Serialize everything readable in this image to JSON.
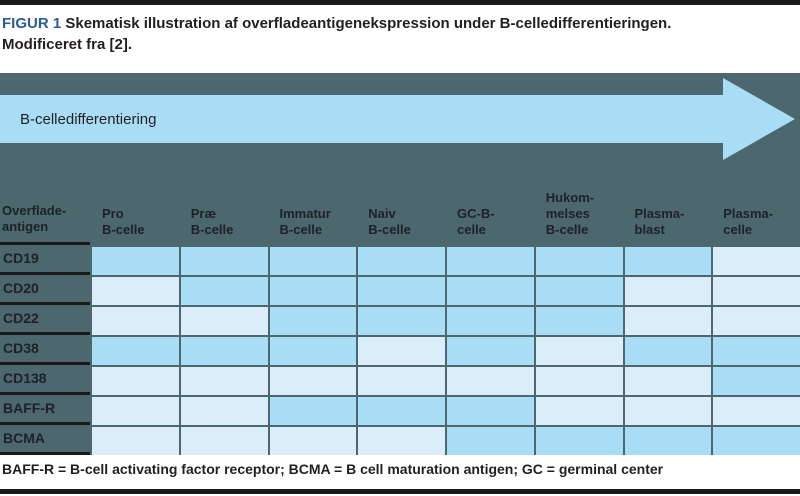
{
  "figure": {
    "label": "FIGUR 1",
    "title_line1": "Skematisk illustration af overfladeantigenekspression under B-celledifferentieringen.",
    "title_line2": "Modificeret fra [2]."
  },
  "arrow": {
    "label": "B-celledifferentiering",
    "color": "#a9ddf6"
  },
  "colors": {
    "background_slate": "#4d676e",
    "expressed": "#a9ddf6",
    "not_expressed": "#dcedfa",
    "figur_label_blue": "#2b5c99",
    "rule_black": "#1a1a1a"
  },
  "table": {
    "corner_header": "Overflade-\nantigen",
    "columns": [
      "Pro\nB-celle",
      "Præ\nB-celle",
      "Immatur\nB-celle",
      "Naiv\nB-celle",
      "GC-B-\ncelle",
      "Hukom-\nmelses\nB-celle",
      "Plasma-\nblast",
      "Plasma-\ncelle"
    ],
    "rows": [
      {
        "label": "CD19",
        "cells": [
          1,
          1,
          1,
          1,
          1,
          1,
          1,
          0
        ]
      },
      {
        "label": "CD20",
        "cells": [
          0,
          1,
          1,
          1,
          1,
          1,
          0,
          0
        ]
      },
      {
        "label": "CD22",
        "cells": [
          0,
          0,
          1,
          1,
          1,
          1,
          0,
          0
        ]
      },
      {
        "label": "CD38",
        "cells": [
          1,
          1,
          1,
          0,
          1,
          0,
          1,
          1
        ]
      },
      {
        "label": "CD138",
        "cells": [
          0,
          0,
          0,
          0,
          0,
          0,
          0,
          1
        ]
      },
      {
        "label": "BAFF-R",
        "cells": [
          0,
          0,
          1,
          1,
          1,
          0,
          0,
          0
        ]
      },
      {
        "label": "BCMA",
        "cells": [
          0,
          0,
          0,
          0,
          1,
          1,
          1,
          1
        ]
      }
    ],
    "cell_meaning": {
      "1": "expressed",
      "0": "not expressed"
    }
  },
  "footnote": "BAFF-R = B-cell activating factor receptor; BCMA = B cell maturation antigen; GC = germinal center"
}
